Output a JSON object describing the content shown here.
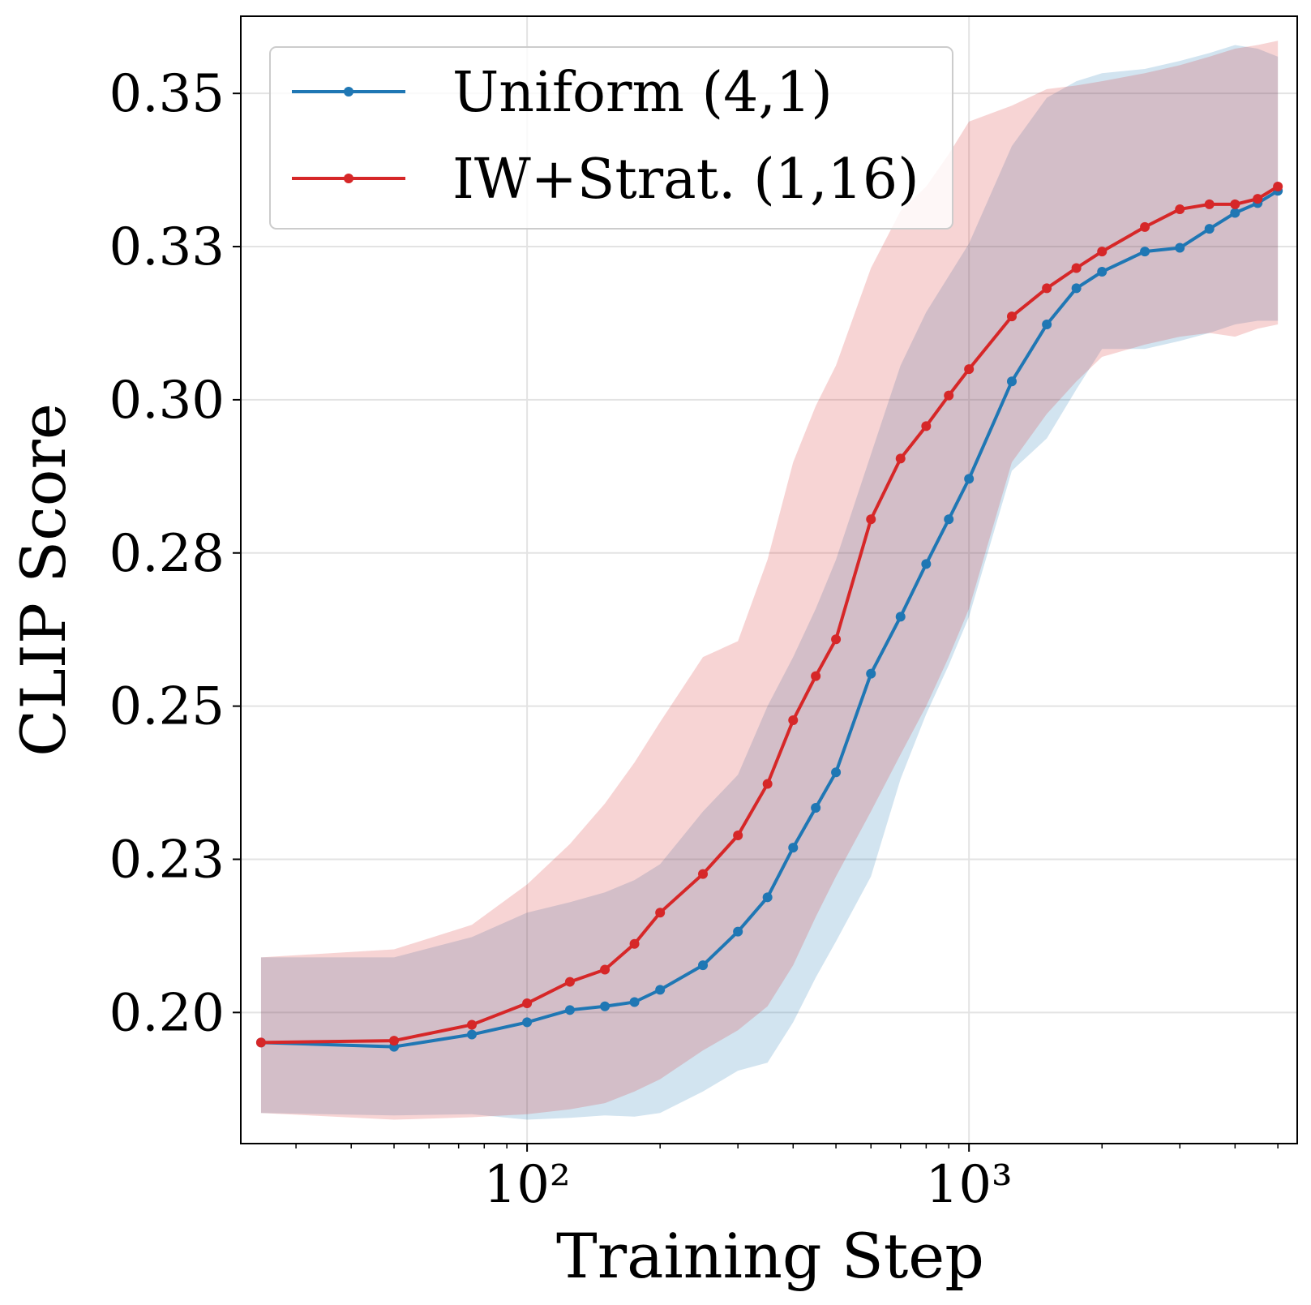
{
  "chart_data": {
    "type": "line",
    "xlabel": "Training Step",
    "ylabel": "CLIP Score",
    "xscale": "log",
    "xlim": [
      22.5,
      5530
    ],
    "ylim": [
      0.1786,
      0.3626
    ],
    "xticks": [
      {
        "value": 100,
        "label": "10²"
      },
      {
        "value": 1000,
        "label": "10³"
      }
    ],
    "yticks": [
      {
        "value": 0.2,
        "label": "0.20"
      },
      {
        "value": 0.225,
        "label": "0.23"
      },
      0.25,
      {
        "value": 0.275,
        "label": "0.28"
      },
      {
        "value": 0.3,
        "label": "0.30"
      },
      {
        "value": 0.325,
        "label": "0.33"
      },
      0.35
    ],
    "grid": true,
    "legend": "upper left",
    "x": [
      25,
      50,
      75,
      100,
      125,
      150,
      175,
      200,
      250,
      300,
      350,
      400,
      450,
      500,
      600,
      700,
      800,
      900,
      1000,
      1250,
      1500,
      1750,
      2000,
      2500,
      3000,
      3500,
      4000,
      4500,
      5000
    ],
    "series": [
      {
        "name": "Uniform (4,1)",
        "color": "#1f77b4",
        "values": [
          0.1951,
          0.1944,
          0.1964,
          0.1984,
          0.2004,
          0.201,
          0.2017,
          0.2037,
          0.2077,
          0.2132,
          0.2188,
          0.2269,
          0.2334,
          0.2392,
          0.2553,
          0.2646,
          0.2732,
          0.2805,
          0.2871,
          0.303,
          0.3123,
          0.3182,
          0.3209,
          0.3242,
          0.3248,
          0.3279,
          0.3305,
          0.3321,
          0.3341
        ],
        "lower": [
          0.1836,
          0.1832,
          0.1834,
          0.1825,
          0.1828,
          0.1832,
          0.183,
          0.1836,
          0.1871,
          0.1905,
          0.1918,
          0.1984,
          0.2057,
          0.2116,
          0.2222,
          0.2381,
          0.2487,
          0.2567,
          0.2646,
          0.2884,
          0.2937,
          0.3017,
          0.3083,
          0.3083,
          0.3096,
          0.3109,
          0.3123,
          0.3129,
          0.3129
        ],
        "upper": [
          0.209,
          0.209,
          0.2123,
          0.2163,
          0.218,
          0.2196,
          0.2216,
          0.2242,
          0.2328,
          0.2388,
          0.25,
          0.258,
          0.2659,
          0.2739,
          0.2911,
          0.3056,
          0.3143,
          0.3202,
          0.3255,
          0.3414,
          0.3493,
          0.352,
          0.3533,
          0.354,
          0.3553,
          0.3566,
          0.3579,
          0.3573,
          0.356
        ]
      },
      {
        "name": "IW+Strat. (1,16)",
        "color": "#d62728",
        "values": [
          0.1951,
          0.1954,
          0.198,
          0.2015,
          0.205,
          0.207,
          0.2112,
          0.2163,
          0.2226,
          0.2289,
          0.2373,
          0.2477,
          0.2549,
          0.2609,
          0.2805,
          0.2904,
          0.2957,
          0.3007,
          0.305,
          0.3136,
          0.3182,
          0.3215,
          0.3242,
          0.3282,
          0.3311,
          0.3319,
          0.3319,
          0.3328,
          0.3348
        ],
        "lower": [
          0.1836,
          0.1825,
          0.1829,
          0.1834,
          0.1842,
          0.1852,
          0.1871,
          0.1891,
          0.1938,
          0.1971,
          0.201,
          0.2077,
          0.2156,
          0.2222,
          0.2328,
          0.2421,
          0.25,
          0.258,
          0.2659,
          0.2898,
          0.2977,
          0.303,
          0.307,
          0.309,
          0.3103,
          0.3109,
          0.3103,
          0.3116,
          0.3123
        ],
        "upper": [
          0.209,
          0.2103,
          0.2143,
          0.2209,
          0.2275,
          0.2341,
          0.2408,
          0.2474,
          0.258,
          0.2606,
          0.2739,
          0.2898,
          0.299,
          0.3056,
          0.3215,
          0.3308,
          0.3348,
          0.3401,
          0.3454,
          0.348,
          0.3507,
          0.3513,
          0.352,
          0.3533,
          0.3546,
          0.356,
          0.3573,
          0.3579,
          0.3586
        ]
      }
    ]
  }
}
